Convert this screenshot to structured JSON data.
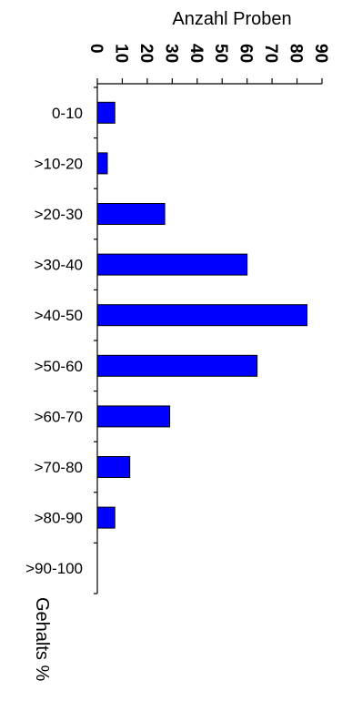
{
  "chart_data": {
    "type": "bar",
    "orientation": "horizontal",
    "title": "Anzahl Proben",
    "xlabel": "Anzahl Proben",
    "ylabel": "Gehalts %",
    "categories": [
      "0-10",
      ">10-20",
      ">20-30",
      ">30-40",
      ">40-50",
      ">50-60",
      ">60-70",
      ">70-80",
      ">80-90",
      ">90-100"
    ],
    "values": [
      7,
      4,
      27,
      60,
      84,
      64,
      29,
      13,
      7,
      0
    ],
    "xlim": [
      0,
      90
    ],
    "x_ticks": [
      "0",
      "10",
      "20",
      "30",
      "40",
      "50",
      "60",
      "70",
      "80",
      "90"
    ],
    "grid": false,
    "bar_color": "#0000FF",
    "x_axis_position": "top",
    "tick_label_rotation": "90"
  }
}
